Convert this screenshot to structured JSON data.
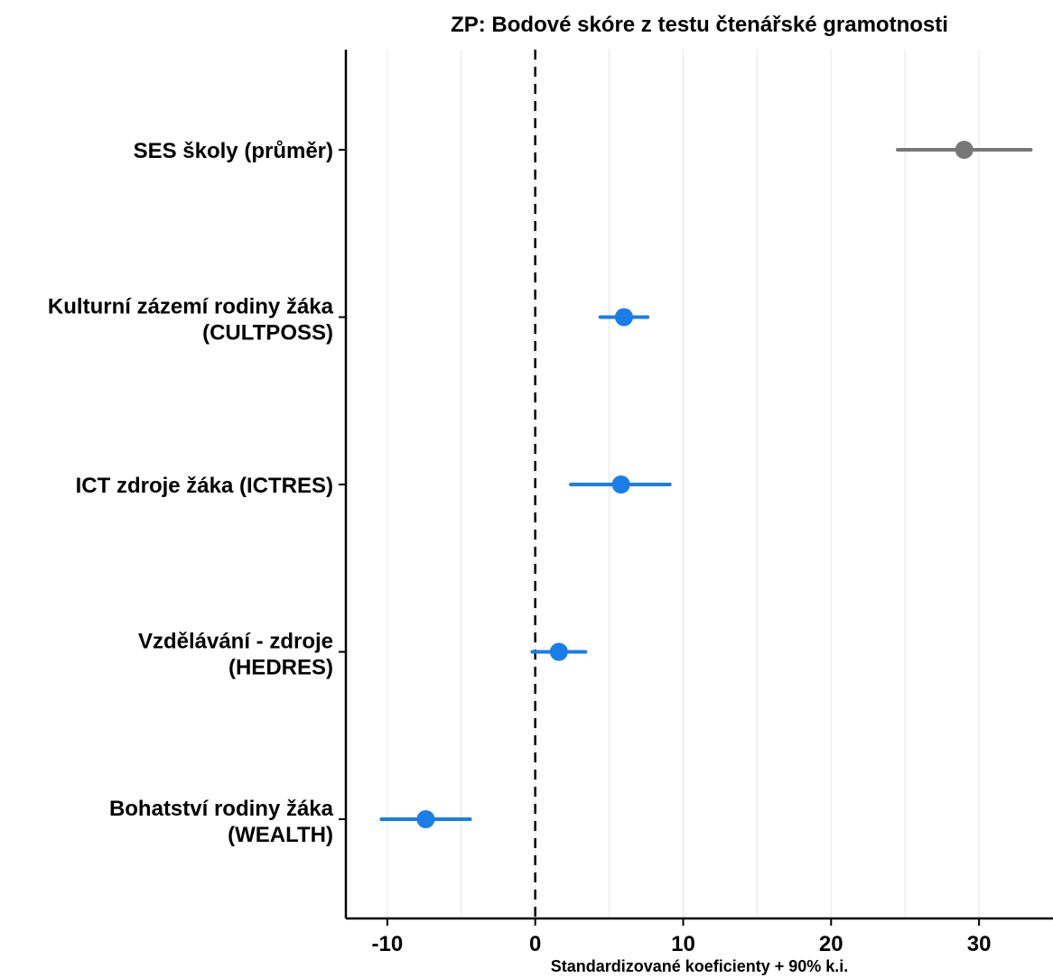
{
  "chart_data": {
    "type": "scatter",
    "subtype": "coefficient-plot",
    "title": "ZP: Bodové skóre z testu čtenářské gramotnosti",
    "xlabel": "Standardizované koeficienty + 90% k.i.",
    "ylabel": "",
    "xlim": [
      -12.8,
      35
    ],
    "xticks": [
      -10,
      0,
      10,
      20,
      30
    ],
    "xtick_labels": [
      "-10",
      "0",
      "10",
      "20",
      "30"
    ],
    "reference_line": 0,
    "grid": "vertical-minor-and-major",
    "items": [
      {
        "label": [
          "SES školy (průměr)"
        ],
        "estimate": 29.0,
        "ci": [
          24.5,
          33.5
        ],
        "color": "#777777"
      },
      {
        "label": [
          "Kulturní zázemí rodiny žáka",
          "(CULTPOSS)"
        ],
        "estimate": 6.0,
        "ci": [
          4.4,
          7.6
        ],
        "color": "#1a7ee8"
      },
      {
        "label": [
          "ICT zdroje žáka (ICTRES)"
        ],
        "estimate": 5.8,
        "ci": [
          2.4,
          9.1
        ],
        "color": "#1a7ee8"
      },
      {
        "label": [
          "Vzdělávání - zdroje",
          "(HEDRES)"
        ],
        "estimate": 1.6,
        "ci": [
          -0.2,
          3.4
        ],
        "color": "#1a7ee8"
      },
      {
        "label": [
          "Bohatství rodiny žáka",
          "(WEALTH)"
        ],
        "estimate": -7.4,
        "ci": [
          -10.4,
          -4.4
        ],
        "color": "#1a7ee8"
      }
    ]
  }
}
